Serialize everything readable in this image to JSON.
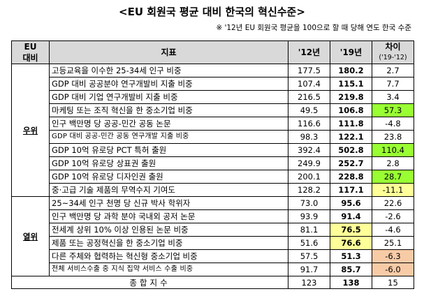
{
  "title": "<EU 회원국 평균 대비 한국의 혁신수준>",
  "note": "※ '12년 EU 회원국 평균을 100으로 할 때 당해 연도 한국 수준",
  "headers": {
    "eu_comparison_line1": "EU",
    "eu_comparison_line2": "대비",
    "indicator": "지표",
    "y2012": "'12년",
    "y2019": "'19년",
    "diff": "차이",
    "diff_sub": "('19-'12)"
  },
  "categories": {
    "superior": "우위",
    "inferior": "열위"
  },
  "rows_superior": [
    {
      "indicator": "고등교육을 이수한 25-34세 인구 비중",
      "y2012": "177.5",
      "y2019": "180.2",
      "diff": "2.7",
      "hl": ""
    },
    {
      "indicator": "GDP 대비 공공분야 연구개발비 지출 비중",
      "y2012": "107.4",
      "y2019": "115.1",
      "diff": "7.7",
      "hl": ""
    },
    {
      "indicator": "GDP 대비 기업 연구개발비 지출 비중",
      "y2012": "216.5",
      "y2019": "219.8",
      "diff": "3.4",
      "hl": ""
    },
    {
      "indicator": "마케팅 또는 조직 혁신을 한 중소기업 비중",
      "y2012": "49.5",
      "y2019": "106.8",
      "diff": "57.3",
      "hl": "green"
    },
    {
      "indicator": "인구 백만명 당 공공-민간 공동 논문",
      "y2012": "116.6",
      "y2019": "111.8",
      "diff": "-4.8",
      "hl": ""
    },
    {
      "indicator": "GDP 대비 공공-민간 공동 연구개발 지출 비중",
      "y2012": "98.3",
      "y2019": "122.1",
      "diff": "23.8",
      "hl": ""
    },
    {
      "indicator": "GDP 10억 유로당 PCT 특허 출원",
      "y2012": "392.4",
      "y2019": "502.8",
      "diff": "110.4",
      "hl": "green"
    },
    {
      "indicator": "GDP 10억 유로당 상표권 출원",
      "y2012": "249.9",
      "y2019": "252.7",
      "diff": "2.8",
      "hl": ""
    },
    {
      "indicator": "GDP 10억 유로당 디자인권 출원",
      "y2012": "200.1",
      "y2019": "228.8",
      "diff": "28.7",
      "hl": "green"
    },
    {
      "indicator": "중·고급 기술 제품의 무역수지 기여도",
      "y2012": "128.2",
      "y2019": "117.1",
      "diff": "-11.1",
      "hl": "yellow"
    }
  ],
  "rows_inferior": [
    {
      "indicator": "25~34세 인구 천명 당 신규 박사 학위자",
      "y2012": "73.0",
      "y2019": "95.6",
      "diff": "22.6",
      "hl": ""
    },
    {
      "indicator": "인구 백만명 당 과학 분야 국내외 공저 논문",
      "y2012": "93.9",
      "y2019": "91.4",
      "diff": "-2.6",
      "hl": ""
    },
    {
      "indicator": "전세계 상위 10% 이상 인용된 논문 비중",
      "y2012": "81.1",
      "y2019": "76.5",
      "diff": "-4.6",
      "hl": "yellow19"
    },
    {
      "indicator": "제품 또는 공정혁신을 한 중소기업 비중",
      "y2012": "51.6",
      "y2019": "76.6",
      "diff": "25.1",
      "hl": "yellow19"
    },
    {
      "indicator": "다른 주체와 협력하는 혁신형 중소기업 비중",
      "y2012": "57.5",
      "y2019": "51.3",
      "diff": "-6.3",
      "hl": "orange"
    },
    {
      "indicator": "전체 서비스수출 중 지식 집약 서비스 수출 비중",
      "y2012": "91.7",
      "y2019": "85.7",
      "diff": "-6.0",
      "hl": "orange"
    }
  ],
  "total": {
    "label": "종합지수",
    "y2012": "123",
    "y2019": "138",
    "diff": "15"
  },
  "colors": {
    "header_bg": "#d9d9d9",
    "green": "#99ff33",
    "yellow": "#ffff99",
    "orange": "#f8cba7"
  }
}
